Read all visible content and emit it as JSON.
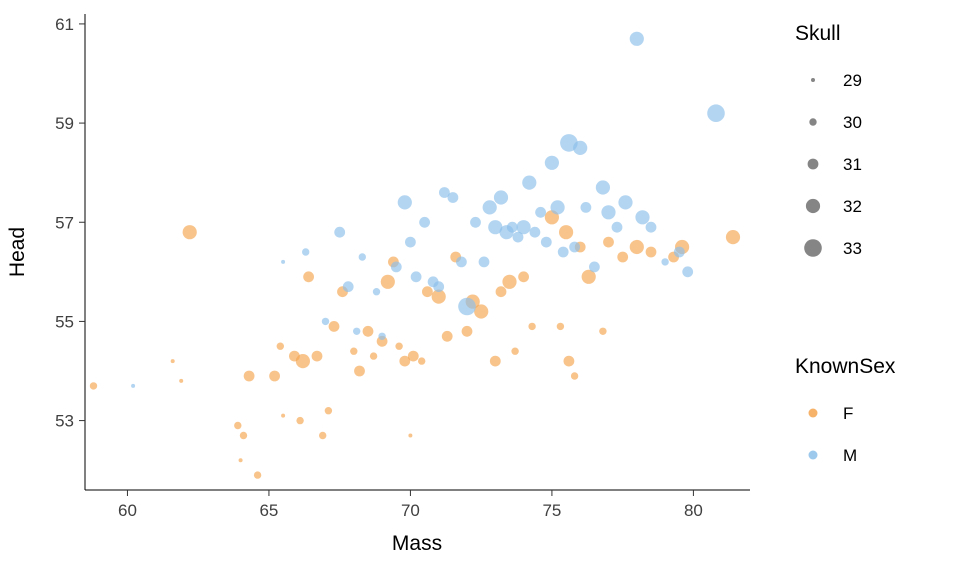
{
  "chart_data": {
    "type": "scatter",
    "title": "",
    "xlabel": "Mass",
    "ylabel": "Head",
    "xlim": [
      58.5,
      82
    ],
    "ylim": [
      51.6,
      61.2
    ],
    "x_ticks": [
      60,
      65,
      70,
      75,
      80
    ],
    "y_ticks": [
      53,
      55,
      57,
      59,
      61
    ],
    "grid": "off",
    "legend_position": "right",
    "size_legend": {
      "title": "Skull",
      "values": [
        29,
        30,
        31,
        32,
        33
      ],
      "swatch_color": "#666666"
    },
    "color_legend": {
      "title": "KnownSex",
      "entries": [
        {
          "label": "F",
          "color": "#F5A54E"
        },
        {
          "label": "M",
          "color": "#8BBFE9"
        }
      ]
    },
    "series": [
      {
        "name": "F",
        "color": "#F5A54E",
        "points": [
          [
            58.8,
            53.7,
            30
          ],
          [
            61.6,
            54.2,
            29
          ],
          [
            61.9,
            53.8,
            29
          ],
          [
            62.2,
            56.8,
            32
          ],
          [
            63.9,
            52.9,
            30
          ],
          [
            64.1,
            52.7,
            30
          ],
          [
            64.0,
            52.2,
            29
          ],
          [
            64.3,
            53.9,
            31
          ],
          [
            64.6,
            51.9,
            30
          ],
          [
            65.2,
            53.9,
            31
          ],
          [
            65.4,
            54.5,
            30
          ],
          [
            65.5,
            53.1,
            29
          ],
          [
            65.9,
            54.3,
            31
          ],
          [
            66.1,
            53.0,
            30
          ],
          [
            66.2,
            54.2,
            32
          ],
          [
            66.4,
            55.9,
            31
          ],
          [
            66.7,
            54.3,
            31
          ],
          [
            66.9,
            52.7,
            30
          ],
          [
            67.1,
            53.2,
            30
          ],
          [
            67.3,
            54.9,
            31
          ],
          [
            67.6,
            55.6,
            31
          ],
          [
            68.0,
            54.4,
            30
          ],
          [
            68.2,
            54.0,
            31
          ],
          [
            68.5,
            54.8,
            31
          ],
          [
            68.7,
            54.3,
            30
          ],
          [
            69.0,
            54.6,
            31
          ],
          [
            69.2,
            55.8,
            32
          ],
          [
            69.4,
            56.2,
            31
          ],
          [
            69.6,
            54.5,
            30
          ],
          [
            69.8,
            54.2,
            31
          ],
          [
            70.0,
            52.7,
            29
          ],
          [
            70.1,
            54.3,
            31
          ],
          [
            70.4,
            54.2,
            30
          ],
          [
            70.6,
            55.6,
            31
          ],
          [
            71.0,
            55.5,
            32
          ],
          [
            71.3,
            54.7,
            31
          ],
          [
            71.6,
            56.3,
            31
          ],
          [
            72.0,
            54.8,
            31
          ],
          [
            72.2,
            55.4,
            32
          ],
          [
            72.5,
            55.2,
            32
          ],
          [
            73.0,
            54.2,
            31
          ],
          [
            73.2,
            55.6,
            31
          ],
          [
            73.5,
            55.8,
            32
          ],
          [
            73.7,
            54.4,
            30
          ],
          [
            74.0,
            55.9,
            31
          ],
          [
            74.3,
            54.9,
            30
          ],
          [
            75.0,
            57.1,
            32
          ],
          [
            75.3,
            54.9,
            30
          ],
          [
            75.5,
            56.8,
            32
          ],
          [
            75.6,
            54.2,
            31
          ],
          [
            75.8,
            53.9,
            30
          ],
          [
            76.0,
            56.5,
            31
          ],
          [
            76.3,
            55.9,
            32
          ],
          [
            76.8,
            54.8,
            30
          ],
          [
            77.0,
            56.6,
            31
          ],
          [
            77.5,
            56.3,
            31
          ],
          [
            78.0,
            56.5,
            32
          ],
          [
            78.5,
            56.4,
            31
          ],
          [
            79.3,
            56.3,
            31
          ],
          [
            79.6,
            56.5,
            32
          ],
          [
            81.4,
            56.7,
            32
          ]
        ]
      },
      {
        "name": "M",
        "color": "#8BBFE9",
        "points": [
          [
            60.2,
            53.7,
            29
          ],
          [
            65.5,
            56.2,
            29
          ],
          [
            66.3,
            56.4,
            30
          ],
          [
            67.0,
            55.0,
            30
          ],
          [
            67.5,
            56.8,
            31
          ],
          [
            67.8,
            55.7,
            31
          ],
          [
            68.1,
            54.8,
            30
          ],
          [
            68.3,
            56.3,
            30
          ],
          [
            68.8,
            55.6,
            30
          ],
          [
            69.0,
            54.7,
            30
          ],
          [
            69.5,
            56.1,
            31
          ],
          [
            69.8,
            57.4,
            32
          ],
          [
            70.0,
            56.6,
            31
          ],
          [
            70.2,
            55.9,
            31
          ],
          [
            70.5,
            57.0,
            31
          ],
          [
            70.8,
            55.8,
            31
          ],
          [
            71.0,
            55.7,
            31
          ],
          [
            71.2,
            57.6,
            31
          ],
          [
            71.5,
            57.5,
            31
          ],
          [
            71.8,
            56.2,
            31
          ],
          [
            72.0,
            55.3,
            33
          ],
          [
            72.3,
            57.0,
            31
          ],
          [
            72.6,
            56.2,
            31
          ],
          [
            72.8,
            57.3,
            32
          ],
          [
            73.0,
            56.9,
            32
          ],
          [
            73.2,
            57.5,
            32
          ],
          [
            73.4,
            56.8,
            32
          ],
          [
            73.6,
            56.9,
            31
          ],
          [
            73.8,
            56.7,
            31
          ],
          [
            74.0,
            56.9,
            32
          ],
          [
            74.2,
            57.8,
            32
          ],
          [
            74.4,
            56.8,
            31
          ],
          [
            74.6,
            57.2,
            31
          ],
          [
            74.8,
            56.6,
            31
          ],
          [
            75.0,
            58.2,
            32
          ],
          [
            75.2,
            57.3,
            32
          ],
          [
            75.4,
            56.4,
            31
          ],
          [
            75.6,
            58.6,
            33
          ],
          [
            75.8,
            56.5,
            31
          ],
          [
            76.0,
            58.5,
            32
          ],
          [
            76.2,
            57.3,
            31
          ],
          [
            76.5,
            56.1,
            31
          ],
          [
            76.8,
            57.7,
            32
          ],
          [
            77.0,
            57.2,
            32
          ],
          [
            77.3,
            56.9,
            31
          ],
          [
            77.6,
            57.4,
            32
          ],
          [
            78.0,
            60.7,
            32
          ],
          [
            78.2,
            57.1,
            32
          ],
          [
            78.5,
            56.9,
            31
          ],
          [
            79.0,
            56.2,
            30
          ],
          [
            79.5,
            56.4,
            31
          ],
          [
            79.8,
            56.0,
            31
          ],
          [
            80.8,
            59.2,
            33
          ]
        ]
      }
    ],
    "style": {
      "point_opacity": 0.65,
      "axis_color": "#000000",
      "tick_label_color": "#404040"
    }
  }
}
